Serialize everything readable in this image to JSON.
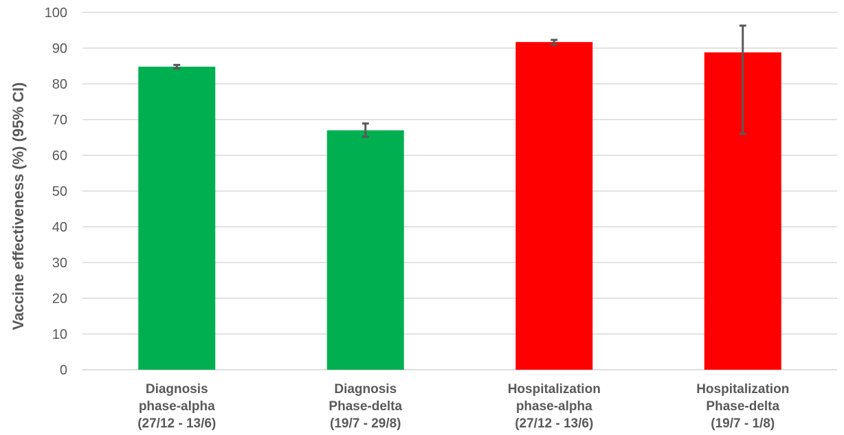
{
  "chart_data": {
    "type": "bar",
    "title": "",
    "xlabel": "",
    "ylabel": "Vaccine effectiveness (%) (95% CI)",
    "ylim": [
      0,
      100
    ],
    "yticks": [
      0,
      10,
      20,
      30,
      40,
      50,
      60,
      70,
      80,
      90,
      100
    ],
    "grid": true,
    "categories": [
      [
        "Diagnosis",
        "phase-alpha",
        "(27/12 - 13/6)"
      ],
      [
        "Diagnosis",
        "Phase-delta",
        "(19/7 - 29/8)"
      ],
      [
        "Hospitalization",
        "phase-alpha",
        "(27/12 - 13/6)"
      ],
      [
        "Hospitalization",
        "Phase-delta",
        "(19/7 - 1/8)"
      ]
    ],
    "values": [
      84.8,
      67.0,
      91.7,
      88.8
    ],
    "ci_low": [
      84.3,
      65.2,
      91.0,
      66.0
    ],
    "ci_high": [
      85.3,
      68.9,
      92.3,
      96.3
    ],
    "colors": [
      "#00b050",
      "#00b050",
      "#ff0000",
      "#ff0000"
    ],
    "error_bar_color": "#595959",
    "grid_color": "#d9d9d9"
  }
}
